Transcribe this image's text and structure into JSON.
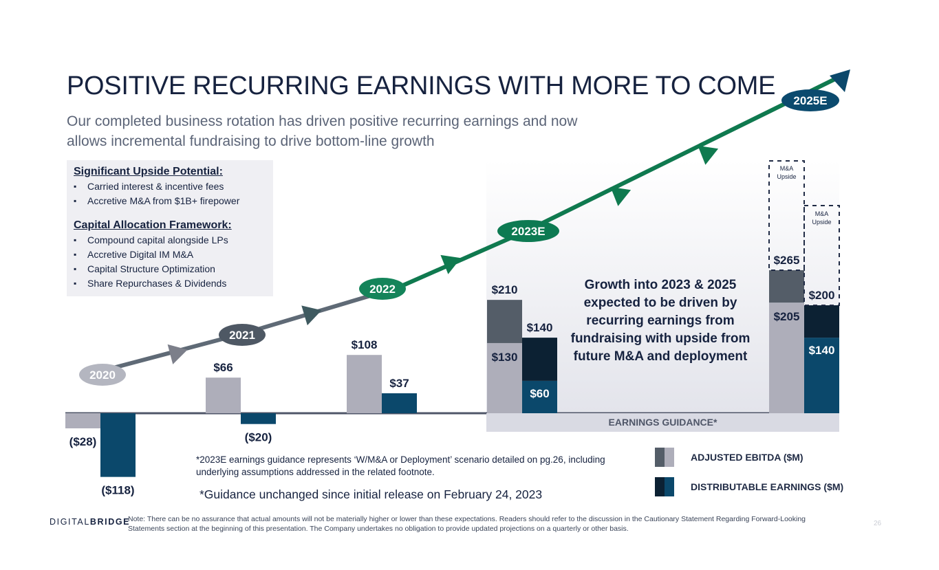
{
  "title": "POSITIVE RECURRING EARNINGS WITH MORE TO COME",
  "subtitle": "Our completed business rotation has driven positive recurring earnings and now allows incremental fundraising to drive bottom-line growth",
  "upside": {
    "heading1": "Significant Upside Potential:",
    "items1": [
      "Carried interest & incentive fees",
      "Accretive M&A from $1B+ firepower"
    ],
    "heading2": "Capital Allocation Framework:",
    "items2": [
      "Compound capital alongside LPs",
      "Accretive Digital IM M&A",
      "Capital Structure Optimization",
      "Share Repurchases & Dividends"
    ]
  },
  "growth_text": "Growth into 2023 & 2025 expected to be driven by recurring earnings from fundraising with upside from future M&A and deployment",
  "guidance_label": "EARNINGS GUIDANCE*",
  "legend": {
    "ebitda": "ADJUSTED EBITDA ($M)",
    "de": "DISTRIBUTABLE EARNINGS ($M)"
  },
  "footnote1": "*2023E earnings guidance represents ‘W/M&A or Deployment’ scenario detailed on pg.26, including underlying assumptions addressed in the related footnote.",
  "footnote2": "*Guidance unchanged since initial release on February 24, 2023",
  "logo": {
    "part1": "DIGITAL",
    "part2": "BRIDGE"
  },
  "note": "Note: There can be no assurance that actual amounts will not be materially higher or lower than these expectations.  Readers should refer to the discussion in the Cautionary Statement Regarding Forward-Looking Statements section at the beginning of this presentation. The Company undertakes no obligation to provide updated projections on a quarterly or other basis.",
  "page_number": "26",
  "colors": {
    "ebitda_light": "#aeaeba",
    "ebitda_dark": "#545d68",
    "de_blue": "#0b486b",
    "de_navy": "#0c2133",
    "arrow_green": "#0f7a4f",
    "badge_2020": "#b4b6c0",
    "badge_2021": "#4e5864",
    "badge_2022": "#14845a",
    "badge_2023": "#0d7a52",
    "badge_2025": "#0b4a6e"
  },
  "chart_data": {
    "type": "bar",
    "unit": "$M",
    "categories": [
      "2020",
      "2021",
      "2022",
      "2023E",
      "2025E"
    ],
    "series": [
      {
        "name": "ADJUSTED EBITDA ($M)",
        "values": [
          -28,
          66,
          108,
          210,
          265
        ],
        "labels": [
          "($28)",
          "$66",
          "$108",
          "$210",
          "$265"
        ],
        "components": [
          {
            "category": "2023E",
            "base": 130,
            "base_label": "$130",
            "increment": 80
          },
          {
            "category": "2025E",
            "base": 205,
            "base_label": "$205",
            "increment": 60
          }
        ]
      },
      {
        "name": "DISTRIBUTABLE EARNINGS ($M)",
        "values": [
          -118,
          -20,
          37,
          140,
          200
        ],
        "labels": [
          "($118)",
          "($20)",
          "$37",
          "$140",
          "$200"
        ],
        "components": [
          {
            "category": "2023E",
            "base": 60,
            "base_label": "$60",
            "increment": 80
          },
          {
            "category": "2025E",
            "base": 140,
            "base_label": "$140",
            "increment": 60
          }
        ]
      }
    ],
    "upside_label": "M&A Upside",
    "upside_categories": [
      "2025E"
    ],
    "trend_badges": [
      "2020",
      "2021",
      "2022",
      "2023E",
      "2025E"
    ],
    "ylim": [
      -118,
      265
    ]
  }
}
